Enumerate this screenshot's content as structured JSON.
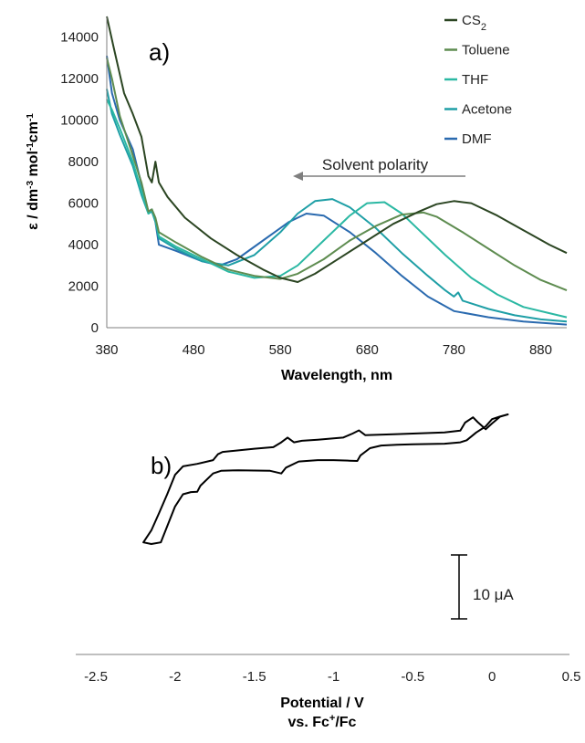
{
  "chart_data": [
    {
      "type": "line",
      "panel_label": "a)",
      "xlabel": "Wavelength, nm",
      "ylabel_parts": [
        "ε / dm",
        "-3",
        " mol",
        "-1",
        "cm",
        "-1"
      ],
      "xlim": [
        380,
        910
      ],
      "ylim": [
        0,
        15000
      ],
      "xticks": [
        "380",
        "480",
        "580",
        "680",
        "780",
        "880"
      ],
      "yticks": [
        "0",
        "2000",
        "4000",
        "6000",
        "8000",
        "10000",
        "12000",
        "14000"
      ],
      "grid": false,
      "legend_position": "top-right",
      "annotation": "Solvent polarity",
      "annotation_arrow": "right-to-left",
      "series": [
        {
          "name": "CS2",
          "legend_main": "CS",
          "legend_sub": "2",
          "color": "#2b4522",
          "points": [
            [
              380,
              16000
            ],
            [
              388,
              13500
            ],
            [
              400,
              11300
            ],
            [
              410,
              10300
            ],
            [
              420,
              9200
            ],
            [
              428,
              7300
            ],
            [
              432,
              7000
            ],
            [
              436,
              8000
            ],
            [
              440,
              7000
            ],
            [
              450,
              6300
            ],
            [
              470,
              5300
            ],
            [
              500,
              4300
            ],
            [
              530,
              3500
            ],
            [
              560,
              2800
            ],
            [
              580,
              2400
            ],
            [
              600,
              2200
            ],
            [
              620,
              2600
            ],
            [
              650,
              3400
            ],
            [
              680,
              4200
            ],
            [
              710,
              5000
            ],
            [
              740,
              5600
            ],
            [
              760,
              5950
            ],
            [
              780,
              6100
            ],
            [
              800,
              6000
            ],
            [
              830,
              5400
            ],
            [
              860,
              4700
            ],
            [
              890,
              4000
            ],
            [
              910,
              3600
            ]
          ]
        },
        {
          "name": "Toluene",
          "legend_main": "Toluene",
          "legend_sub": "",
          "color": "#5e8c50",
          "points": [
            [
              380,
              13000
            ],
            [
              386,
              12000
            ],
            [
              395,
              10200
            ],
            [
              410,
              8300
            ],
            [
              420,
              7000
            ],
            [
              428,
              5600
            ],
            [
              432,
              5700
            ],
            [
              436,
              5300
            ],
            [
              440,
              4600
            ],
            [
              460,
              4100
            ],
            [
              490,
              3400
            ],
            [
              520,
              2800
            ],
            [
              550,
              2500
            ],
            [
              580,
              2350
            ],
            [
              600,
              2600
            ],
            [
              630,
              3300
            ],
            [
              660,
              4200
            ],
            [
              690,
              4900
            ],
            [
              720,
              5450
            ],
            [
              745,
              5550
            ],
            [
              760,
              5350
            ],
            [
              790,
              4600
            ],
            [
              820,
              3800
            ],
            [
              850,
              3000
            ],
            [
              880,
              2300
            ],
            [
              910,
              1800
            ]
          ]
        },
        {
          "name": "THF",
          "legend_main": "THF",
          "legend_sub": "",
          "color": "#2bb8a3",
          "points": [
            [
              380,
              11000
            ],
            [
              386,
              10500
            ],
            [
              395,
              9600
            ],
            [
              410,
              8000
            ],
            [
              420,
              6600
            ],
            [
              428,
              5500
            ],
            [
              432,
              5700
            ],
            [
              436,
              5200
            ],
            [
              440,
              4400
            ],
            [
              460,
              3900
            ],
            [
              490,
              3300
            ],
            [
              520,
              2700
            ],
            [
              550,
              2400
            ],
            [
              580,
              2500
            ],
            [
              600,
              3000
            ],
            [
              630,
              4200
            ],
            [
              660,
              5400
            ],
            [
              680,
              6000
            ],
            [
              700,
              6050
            ],
            [
              720,
              5500
            ],
            [
              740,
              4700
            ],
            [
              770,
              3500
            ],
            [
              800,
              2400
            ],
            [
              830,
              1600
            ],
            [
              860,
              1000
            ],
            [
              890,
              700
            ],
            [
              910,
              500
            ]
          ]
        },
        {
          "name": "Acetone",
          "legend_main": "Acetone",
          "legend_sub": "",
          "color": "#1f9fa6",
          "points": [
            [
              380,
              11500
            ],
            [
              386,
              10300
            ],
            [
              395,
              9300
            ],
            [
              410,
              7800
            ],
            [
              420,
              6400
            ],
            [
              428,
              5500
            ],
            [
              432,
              5600
            ],
            [
              436,
              5100
            ],
            [
              440,
              4300
            ],
            [
              460,
              3800
            ],
            [
              490,
              3200
            ],
            [
              520,
              3000
            ],
            [
              550,
              3500
            ],
            [
              580,
              4600
            ],
            [
              600,
              5500
            ],
            [
              620,
              6100
            ],
            [
              640,
              6200
            ],
            [
              660,
              5800
            ],
            [
              690,
              4800
            ],
            [
              720,
              3600
            ],
            [
              750,
              2500
            ],
            [
              770,
              1800
            ],
            [
              780,
              1500
            ],
            [
              785,
              1700
            ],
            [
              790,
              1300
            ],
            [
              820,
              900
            ],
            [
              850,
              600
            ],
            [
              880,
              400
            ],
            [
              910,
              300
            ]
          ]
        },
        {
          "name": "DMF",
          "legend_main": "DMF",
          "legend_sub": "",
          "color": "#2a6aaf",
          "points": [
            [
              380,
              13100
            ],
            [
              386,
              11300
            ],
            [
              395,
              10000
            ],
            [
              410,
              8600
            ],
            [
              420,
              6900
            ],
            [
              428,
              5600
            ],
            [
              432,
              5700
            ],
            [
              436,
              5100
            ],
            [
              440,
              4000
            ],
            [
              460,
              3700
            ],
            [
              490,
              3200
            ],
            [
              510,
              3000
            ],
            [
              530,
              3300
            ],
            [
              560,
              4200
            ],
            [
              590,
              5100
            ],
            [
              610,
              5500
            ],
            [
              630,
              5400
            ],
            [
              660,
              4600
            ],
            [
              690,
              3600
            ],
            [
              720,
              2500
            ],
            [
              750,
              1500
            ],
            [
              780,
              800
            ],
            [
              820,
              500
            ],
            [
              860,
              300
            ],
            [
              910,
              150
            ]
          ]
        }
      ]
    },
    {
      "type": "line",
      "panel_label": "b)",
      "xlabel": "Potential / V",
      "xlabel2_parts": [
        "vs. Fc",
        "+",
        "/Fc"
      ],
      "xlim": [
        -2.5,
        0.5
      ],
      "xticks": [
        "-2.5",
        "-2",
        "-1.5",
        "-1",
        "-0.5",
        "0",
        "0.5"
      ],
      "ylim": [
        -80,
        15
      ],
      "y_axis_shown": false,
      "scale_bar_label": "10 μA",
      "scale_bar_value_uA": 10,
      "series": [
        {
          "name": "",
          "color": "#000000",
          "points": [
            [
              0.1,
              10.2
            ],
            [
              0.05,
              9.3
            ],
            [
              0,
              6.8
            ],
            [
              -0.04,
              4.6
            ],
            [
              -0.09,
              7.3
            ],
            [
              -0.12,
              9.1
            ],
            [
              -0.17,
              7.1
            ],
            [
              -0.2,
              4.1
            ],
            [
              -0.3,
              3.4
            ],
            [
              -0.5,
              3.0
            ],
            [
              -0.6,
              2.8
            ],
            [
              -0.8,
              2.4
            ],
            [
              -0.84,
              4.2
            ],
            [
              -0.88,
              3.0
            ],
            [
              -0.94,
              1.5
            ],
            [
              -1.0,
              1.2
            ],
            [
              -1.1,
              0.7
            ],
            [
              -1.2,
              0.3
            ],
            [
              -1.25,
              -0.3
            ],
            [
              -1.29,
              1.5
            ],
            [
              -1.33,
              -0.3
            ],
            [
              -1.38,
              -2.1
            ],
            [
              -1.5,
              -2.7
            ],
            [
              -1.6,
              -3.3
            ],
            [
              -1.7,
              -3.9
            ],
            [
              -1.73,
              -4.8
            ],
            [
              -1.76,
              -7.0
            ],
            [
              -1.86,
              -8.4
            ],
            [
              -1.95,
              -9.3
            ],
            [
              -2.0,
              -12.5
            ],
            [
              -2.05,
              -19.8
            ],
            [
              -2.1,
              -26.7
            ],
            [
              -2.15,
              -33.4
            ],
            [
              -2.2,
              -37.9
            ],
            [
              -2.15,
              -38.5
            ],
            [
              -2.09,
              -37.9
            ],
            [
              -2.06,
              -33.4
            ],
            [
              -2.0,
              -24.4
            ],
            [
              -1.95,
              -19.8
            ],
            [
              -1.9,
              -19.0
            ],
            [
              -1.86,
              -18.9
            ],
            [
              -1.84,
              -16.6
            ],
            [
              -1.76,
              -12.0
            ],
            [
              -1.71,
              -11.0
            ],
            [
              -1.6,
              -10.8
            ],
            [
              -1.4,
              -11.0
            ],
            [
              -1.33,
              -12.0
            ],
            [
              -1.3,
              -9.8
            ],
            [
              -1.22,
              -7.5
            ],
            [
              -1.1,
              -7.0
            ],
            [
              -1.0,
              -7.0
            ],
            [
              -0.9,
              -7.2
            ],
            [
              -0.85,
              -7.3
            ],
            [
              -0.83,
              -5.2
            ],
            [
              -0.77,
              -2.5
            ],
            [
              -0.7,
              -1.5
            ],
            [
              -0.6,
              -1.2
            ],
            [
              -0.5,
              -1.0
            ],
            [
              -0.3,
              -0.8
            ],
            [
              -0.2,
              -0.3
            ],
            [
              -0.16,
              0.5
            ],
            [
              -0.1,
              3.4
            ],
            [
              -0.04,
              5.7
            ],
            [
              0,
              8.4
            ],
            [
              0.05,
              9.4
            ],
            [
              0.1,
              10.2
            ]
          ]
        }
      ]
    }
  ]
}
